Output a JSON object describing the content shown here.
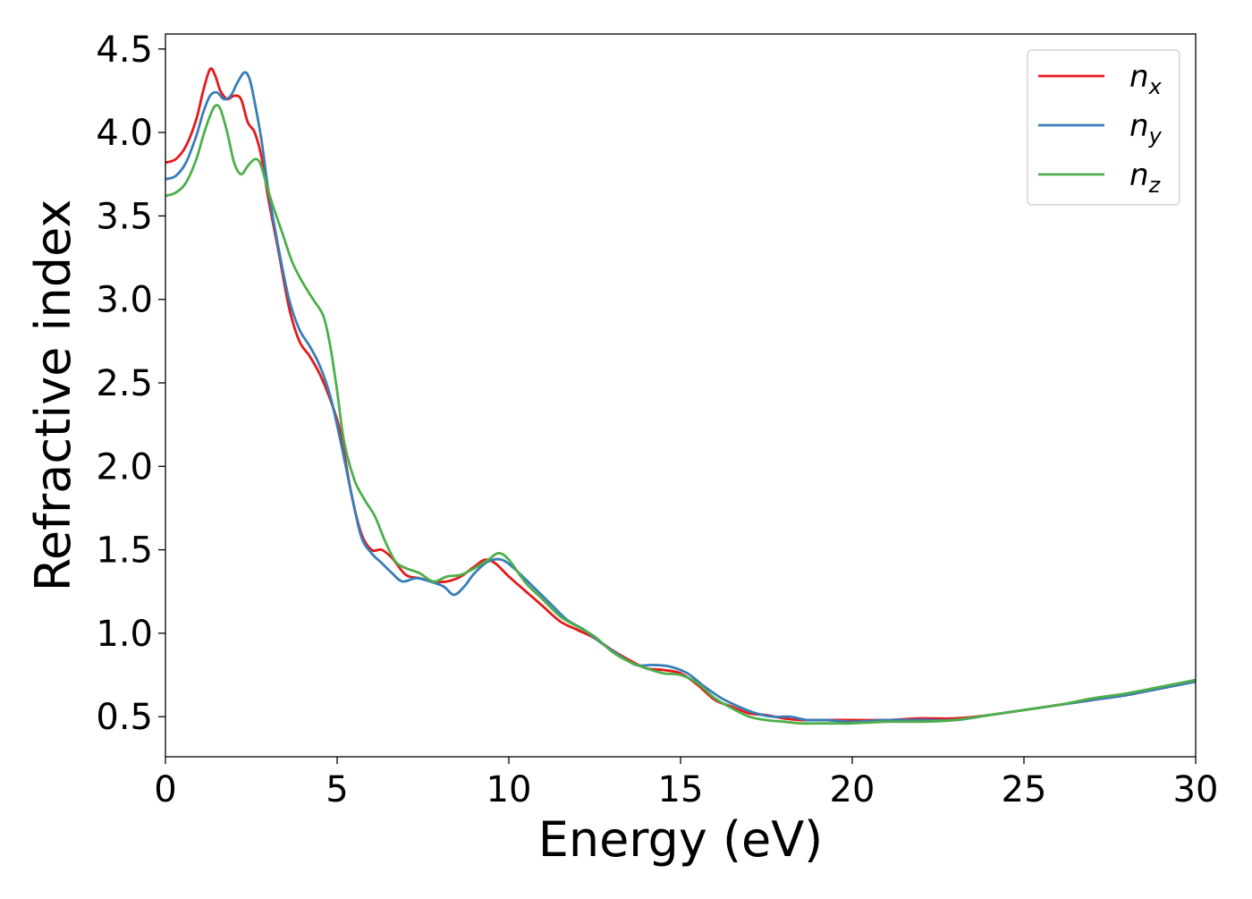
{
  "chart_data": {
    "type": "line",
    "title": "",
    "xlabel": "Energy (eV)",
    "ylabel": "Refractive index",
    "xlim": [
      0,
      30
    ],
    "ylim": [
      0.26,
      4.59
    ],
    "xticks": [
      0,
      5,
      10,
      15,
      20,
      25,
      30
    ],
    "yticks": [
      0.5,
      1.0,
      1.5,
      2.0,
      2.5,
      3.0,
      3.5,
      4.0,
      4.5
    ],
    "xtick_labels": [
      "0",
      "5",
      "10",
      "15",
      "20",
      "25",
      "30"
    ],
    "ytick_labels": [
      "0.5",
      "1.0",
      "1.5",
      "2.0",
      "2.5",
      "3.0",
      "3.5",
      "4.0",
      "4.5"
    ],
    "grid": false,
    "legend_position": "top-right",
    "series": [
      {
        "name": "n_x",
        "label_base": "n",
        "label_sub": "x",
        "color": "#e41a1c",
        "x": [
          0,
          0.3,
          0.6,
          0.9,
          1.1,
          1.3,
          1.45,
          1.6,
          1.8,
          2.0,
          2.2,
          2.4,
          2.6,
          2.8,
          3.0,
          3.3,
          3.6,
          3.9,
          4.2,
          4.5,
          4.8,
          5.1,
          5.4,
          5.7,
          6.0,
          6.3,
          6.6,
          7.0,
          7.4,
          7.8,
          8.2,
          8.6,
          9.0,
          9.3,
          9.6,
          10.0,
          10.5,
          11.0,
          11.5,
          12.0,
          12.5,
          13.0,
          13.5,
          14.0,
          14.5,
          15.0,
          15.5,
          16.0,
          16.5,
          17.0,
          17.5,
          18.0,
          18.5,
          19.0,
          19.5,
          20.0,
          21.0,
          22.0,
          23.0,
          24.0,
          25.0,
          26.0,
          27.0,
          28.0,
          29.0,
          30.0
        ],
        "y": [
          3.82,
          3.84,
          3.92,
          4.08,
          4.25,
          4.38,
          4.34,
          4.25,
          4.2,
          4.22,
          4.2,
          4.06,
          4.0,
          3.85,
          3.6,
          3.28,
          2.95,
          2.75,
          2.66,
          2.55,
          2.4,
          2.2,
          1.85,
          1.6,
          1.5,
          1.5,
          1.45,
          1.35,
          1.33,
          1.31,
          1.31,
          1.34,
          1.4,
          1.44,
          1.42,
          1.34,
          1.25,
          1.16,
          1.07,
          1.02,
          0.97,
          0.9,
          0.84,
          0.79,
          0.78,
          0.76,
          0.69,
          0.6,
          0.56,
          0.52,
          0.51,
          0.49,
          0.48,
          0.48,
          0.48,
          0.48,
          0.48,
          0.49,
          0.49,
          0.51,
          0.54,
          0.57,
          0.6,
          0.63,
          0.67,
          0.71
        ]
      },
      {
        "name": "n_y",
        "label_base": "n",
        "label_sub": "y",
        "color": "#377eb8",
        "x": [
          0,
          0.3,
          0.6,
          0.9,
          1.1,
          1.3,
          1.5,
          1.7,
          1.9,
          2.1,
          2.3,
          2.45,
          2.6,
          2.8,
          3.0,
          3.3,
          3.6,
          3.9,
          4.2,
          4.5,
          4.8,
          5.1,
          5.4,
          5.7,
          6.0,
          6.3,
          6.6,
          6.9,
          7.3,
          7.7,
          8.1,
          8.4,
          8.7,
          9.0,
          9.4,
          9.8,
          10.2,
          10.7,
          11.2,
          11.7,
          12.2,
          12.7,
          13.2,
          13.7,
          14.2,
          14.7,
          15.2,
          15.7,
          16.2,
          16.7,
          17.2,
          17.7,
          18.2,
          18.7,
          19.2,
          20.0,
          21.0,
          22.0,
          23.0,
          24.0,
          25.0,
          26.0,
          27.0,
          28.0,
          29.0,
          30.0
        ],
        "y": [
          3.72,
          3.74,
          3.82,
          3.98,
          4.12,
          4.22,
          4.24,
          4.2,
          4.22,
          4.3,
          4.36,
          4.32,
          4.18,
          3.95,
          3.65,
          3.3,
          3.0,
          2.82,
          2.72,
          2.6,
          2.42,
          2.15,
          1.85,
          1.58,
          1.48,
          1.42,
          1.36,
          1.31,
          1.33,
          1.31,
          1.28,
          1.23,
          1.28,
          1.36,
          1.43,
          1.44,
          1.38,
          1.28,
          1.18,
          1.08,
          1.02,
          0.94,
          0.87,
          0.81,
          0.81,
          0.8,
          0.76,
          0.68,
          0.61,
          0.56,
          0.52,
          0.5,
          0.5,
          0.48,
          0.48,
          0.47,
          0.48,
          0.48,
          0.48,
          0.51,
          0.54,
          0.57,
          0.6,
          0.63,
          0.67,
          0.71
        ]
      },
      {
        "name": "n_z",
        "label_base": "n",
        "label_sub": "z",
        "color": "#4daf4a",
        "x": [
          0,
          0.3,
          0.6,
          0.9,
          1.1,
          1.3,
          1.45,
          1.6,
          1.8,
          2.0,
          2.2,
          2.4,
          2.6,
          2.75,
          2.9,
          3.1,
          3.4,
          3.7,
          4.0,
          4.3,
          4.6,
          4.8,
          5.0,
          5.2,
          5.5,
          5.8,
          6.1,
          6.4,
          6.7,
          7.0,
          7.4,
          7.8,
          8.2,
          8.6,
          9.0,
          9.4,
          9.7,
          10.0,
          10.5,
          11.0,
          11.5,
          12.0,
          12.5,
          13.0,
          13.5,
          14.0,
          14.5,
          15.0,
          15.5,
          16.0,
          16.5,
          17.0,
          17.5,
          18.0,
          18.5,
          19.0,
          19.5,
          20.0,
          21.0,
          22.0,
          23.0,
          24.0,
          25.0,
          26.0,
          27.0,
          28.0,
          29.0,
          30.0
        ],
        "y": [
          3.62,
          3.64,
          3.7,
          3.84,
          3.98,
          4.1,
          4.16,
          4.14,
          4.0,
          3.82,
          3.75,
          3.8,
          3.84,
          3.82,
          3.72,
          3.58,
          3.4,
          3.22,
          3.1,
          3.0,
          2.9,
          2.72,
          2.45,
          2.15,
          1.92,
          1.8,
          1.7,
          1.55,
          1.43,
          1.39,
          1.36,
          1.31,
          1.34,
          1.35,
          1.39,
          1.44,
          1.48,
          1.44,
          1.3,
          1.2,
          1.1,
          1.04,
          0.98,
          0.89,
          0.83,
          0.79,
          0.76,
          0.75,
          0.7,
          0.61,
          0.55,
          0.5,
          0.48,
          0.47,
          0.46,
          0.46,
          0.46,
          0.46,
          0.47,
          0.47,
          0.48,
          0.51,
          0.54,
          0.57,
          0.61,
          0.64,
          0.68,
          0.72
        ]
      }
    ]
  }
}
